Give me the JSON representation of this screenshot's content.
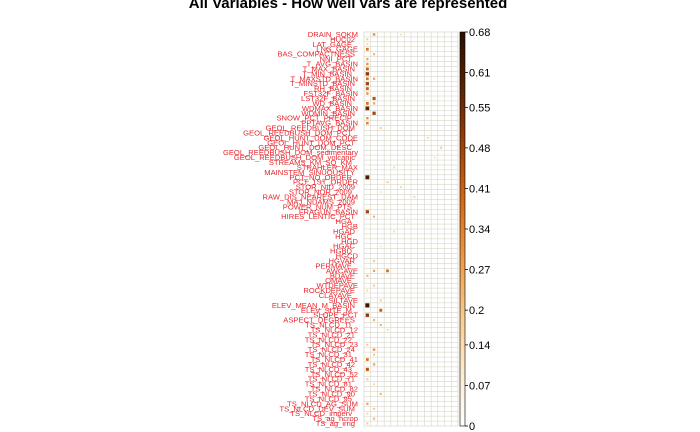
{
  "chart_data": {
    "type": "heatmap",
    "title": "All Variables - How well vars are represented",
    "xlabel": "",
    "ylabel": "",
    "row_labels": [
      "DRAIN_SQKM",
      "HUC02",
      "LAT_GAGE",
      "LNG_GAGE",
      "BAS_COMPACTNESS",
      "NNI_PCT",
      "T_AVG_BASIN",
      "T_MAX_BASIN",
      "T_MIN_BASIN",
      "T_MAXSTD_BASIN",
      "T_MINSTD_BASIN",
      "RH_BASIN",
      "FST32F_BASIN",
      "LST32F_BASIN",
      "WD_BASIN",
      "WDMAX_BASIN",
      "WDMIN_BASIN",
      "SNOW_PCT_PRECIP",
      "PPTAVG_BASIN",
      "GEOL_REEDBUSH_DOM",
      "GEOL_REEDBUSH_DOM_PCT",
      "GEOL_HUNT_DOM_CODE",
      "GEOL_HUNT_DOM_PCT",
      "GEOL_HUNT_DOM_DESC",
      "GEOL_REEDBUSH_DOM_sedimentary",
      "GEOL_REEDBUSH_DOM_volcanic",
      "STREAMS_KM_SQ_KM",
      "STRAHLER_MAX",
      "MAINSTEM_SINUOUSITY",
      "PCT_NO_ORDER",
      "PCT_1ST_ORDER",
      "STOR_NID_2009",
      "STOR_NOR_2009",
      "RAW_DIS_NEAREST_DAM",
      "MAJ_NDAMS_2009",
      "POWER_NUM_PTS",
      "FRAGUN_BASIN",
      "HIRES_LENTIC_PCT",
      "HGA",
      "HGB",
      "HGAD",
      "HGC",
      "HGD",
      "HGAC",
      "HGBD",
      "HGCD",
      "HGVAR",
      "PERMAVE",
      "AWCAVE",
      "BDAVE",
      "OMAVE",
      "WTDEPAVE",
      "ROCKDEPAVE",
      "CLAYAVE",
      "SILTAVE",
      "ELEV_MEAN_M_BASIN",
      "ELEV_SITE_M",
      "SLOPE_PCT",
      "ASPECT_DEGREES",
      "TS_NLCD_11",
      "TS_NLCD_12",
      "TS_NLCD_21",
      "TS_NLCD_22",
      "TS_NLCD_23",
      "TS_NLCD_24",
      "TS_NLCD_31",
      "TS_NLCD_41",
      "TS_NLCD_42",
      "TS_NLCD_43",
      "TS_NLCD_52",
      "TS_NLCD_71",
      "TS_NLCD_81",
      "TS_NLCD_82",
      "TS_NLCD_90",
      "TS_NLCD_95",
      "TS_NLCD_AG_SUM",
      "TS_NLCD_DEV_SUM",
      "TS_NLCD_imperv",
      "TS_ag_hcrop",
      "TS_ag_irrig"
    ],
    "n_cols": 14,
    "column_labels_visible": false,
    "cells": [
      [
        0,
        1,
        0.45
      ],
      [
        0,
        5,
        0.22
      ],
      [
        1,
        0,
        0.3
      ],
      [
        2,
        0,
        0.25
      ],
      [
        3,
        0,
        0.55
      ],
      [
        4,
        1,
        0.35
      ],
      [
        5,
        0,
        0.4
      ],
      [
        6,
        0,
        0.45
      ],
      [
        7,
        0,
        0.6
      ],
      [
        8,
        0,
        0.75
      ],
      [
        9,
        0,
        0.55
      ],
      [
        9,
        1,
        0.4
      ],
      [
        10,
        0,
        0.7
      ],
      [
        11,
        0,
        0.6
      ],
      [
        12,
        0,
        0.45
      ],
      [
        13,
        1,
        0.65
      ],
      [
        14,
        0,
        0.55
      ],
      [
        14,
        1,
        0.4
      ],
      [
        15,
        0,
        0.85
      ],
      [
        16,
        1,
        0.7
      ],
      [
        17,
        0,
        0.45
      ],
      [
        18,
        0,
        0.5
      ],
      [
        19,
        2,
        0.3
      ],
      [
        21,
        9,
        0.25
      ],
      [
        23,
        11,
        0.3
      ],
      [
        25,
        10,
        0.2
      ],
      [
        27,
        4,
        0.25
      ],
      [
        29,
        0,
        0.9
      ],
      [
        30,
        3,
        0.3
      ],
      [
        31,
        5,
        0.25
      ],
      [
        32,
        2,
        0.2
      ],
      [
        33,
        7,
        0.25
      ],
      [
        36,
        0,
        0.7
      ],
      [
        37,
        1,
        0.35
      ],
      [
        38,
        6,
        0.2
      ],
      [
        40,
        4,
        0.25
      ],
      [
        43,
        2,
        0.2
      ],
      [
        46,
        1,
        0.3
      ],
      [
        48,
        1,
        0.4
      ],
      [
        48,
        3,
        0.55
      ],
      [
        49,
        0,
        0.35
      ],
      [
        51,
        1,
        0.3
      ],
      [
        52,
        0,
        0.25
      ],
      [
        54,
        2,
        0.3
      ],
      [
        55,
        0,
        0.95
      ],
      [
        56,
        2,
        0.6
      ],
      [
        57,
        0,
        0.75
      ],
      [
        58,
        1,
        0.35
      ],
      [
        59,
        2,
        0.35
      ],
      [
        60,
        3,
        0.25
      ],
      [
        63,
        0,
        0.3
      ],
      [
        64,
        1,
        0.45
      ],
      [
        65,
        1,
        0.3
      ],
      [
        66,
        0,
        0.55
      ],
      [
        67,
        1,
        0.4
      ],
      [
        68,
        0,
        0.65
      ],
      [
        70,
        0,
        0.3
      ],
      [
        71,
        1,
        0.25
      ],
      [
        73,
        2,
        0.35
      ],
      [
        75,
        0,
        0.4
      ],
      [
        76,
        1,
        0.3
      ],
      [
        77,
        0,
        0.25
      ],
      [
        78,
        1,
        0.35
      ],
      [
        79,
        0,
        0.3
      ]
    ],
    "colorbar": {
      "ticks": [
        "0",
        "0.07",
        "0.14",
        "0.2",
        "0.27",
        "0.34",
        "0.41",
        "0.48",
        "0.55",
        "0.61",
        "0.68"
      ],
      "min": 0,
      "max": 0.68,
      "colors": [
        "#ffffff",
        "#fdebcf",
        "#f9c98a",
        "#ee9a44",
        "#d46a16",
        "#9c420a",
        "#5a2305",
        "#2b0e01"
      ]
    },
    "label_color": "#e8272e",
    "grid_color": "#cfcfbf",
    "legend": "right"
  }
}
